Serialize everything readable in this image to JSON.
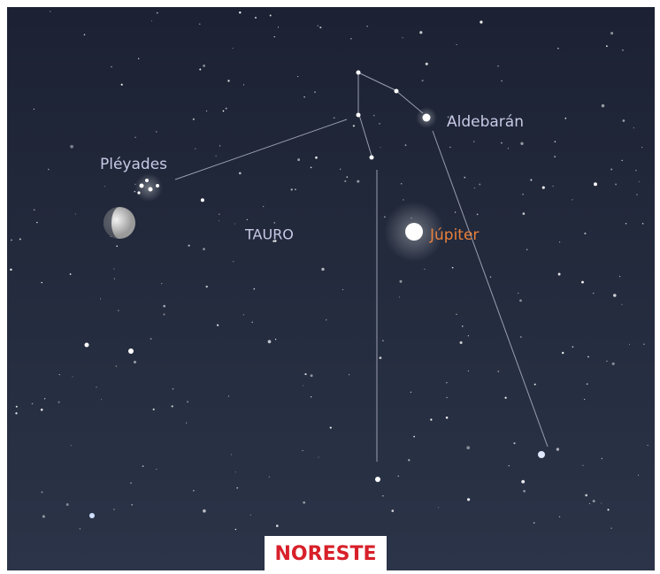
{
  "labels": {
    "aldebaran": "Aldebarán",
    "pleyades": "Pléyades",
    "tauro": "TAURO",
    "jupiter": "Júpiter",
    "direction": "NORESTE"
  }
}
